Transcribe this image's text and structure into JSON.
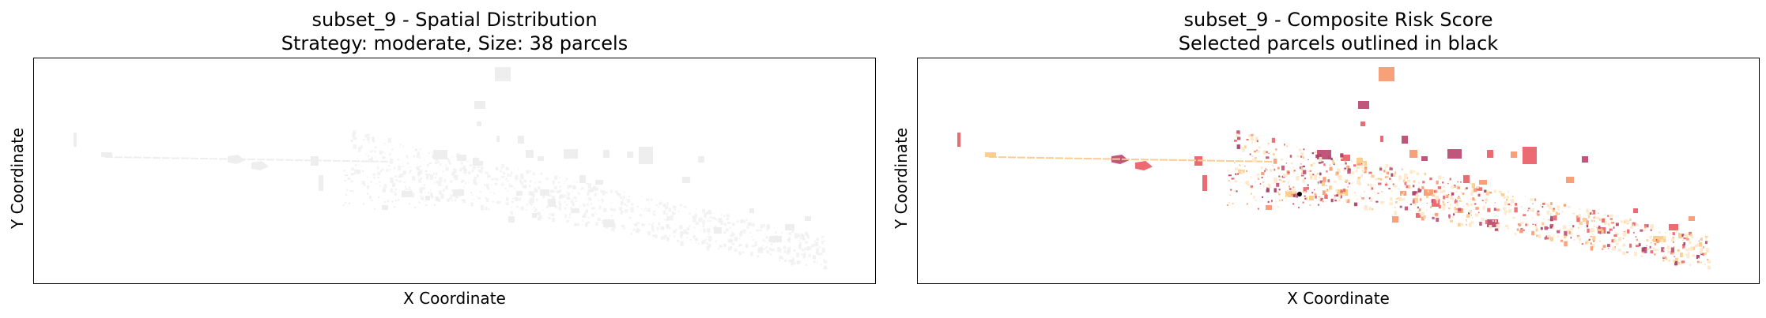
{
  "panels": [
    {
      "title_line1": "subset_9 - Spatial Distribution",
      "title_line2": "Strategy: moderate, Size: 38 parcels",
      "xlabel": "X Coordinate",
      "ylabel": "Y Coordinate",
      "fill_mode": "neutral"
    },
    {
      "title_line1": "subset_9 - Composite Risk Score",
      "title_line2": "Selected parcels outlined in black",
      "xlabel": "X Coordinate",
      "ylabel": "Y Coordinate",
      "fill_mode": "risk"
    }
  ],
  "colors": {
    "neutral_fill": "#eeeeee",
    "risk_palette": [
      "#fde8c8",
      "#fbcd8e",
      "#f7a079",
      "#ec6a72",
      "#c0567a",
      "#a8446a"
    ],
    "selected_outline": "#000000"
  }
}
